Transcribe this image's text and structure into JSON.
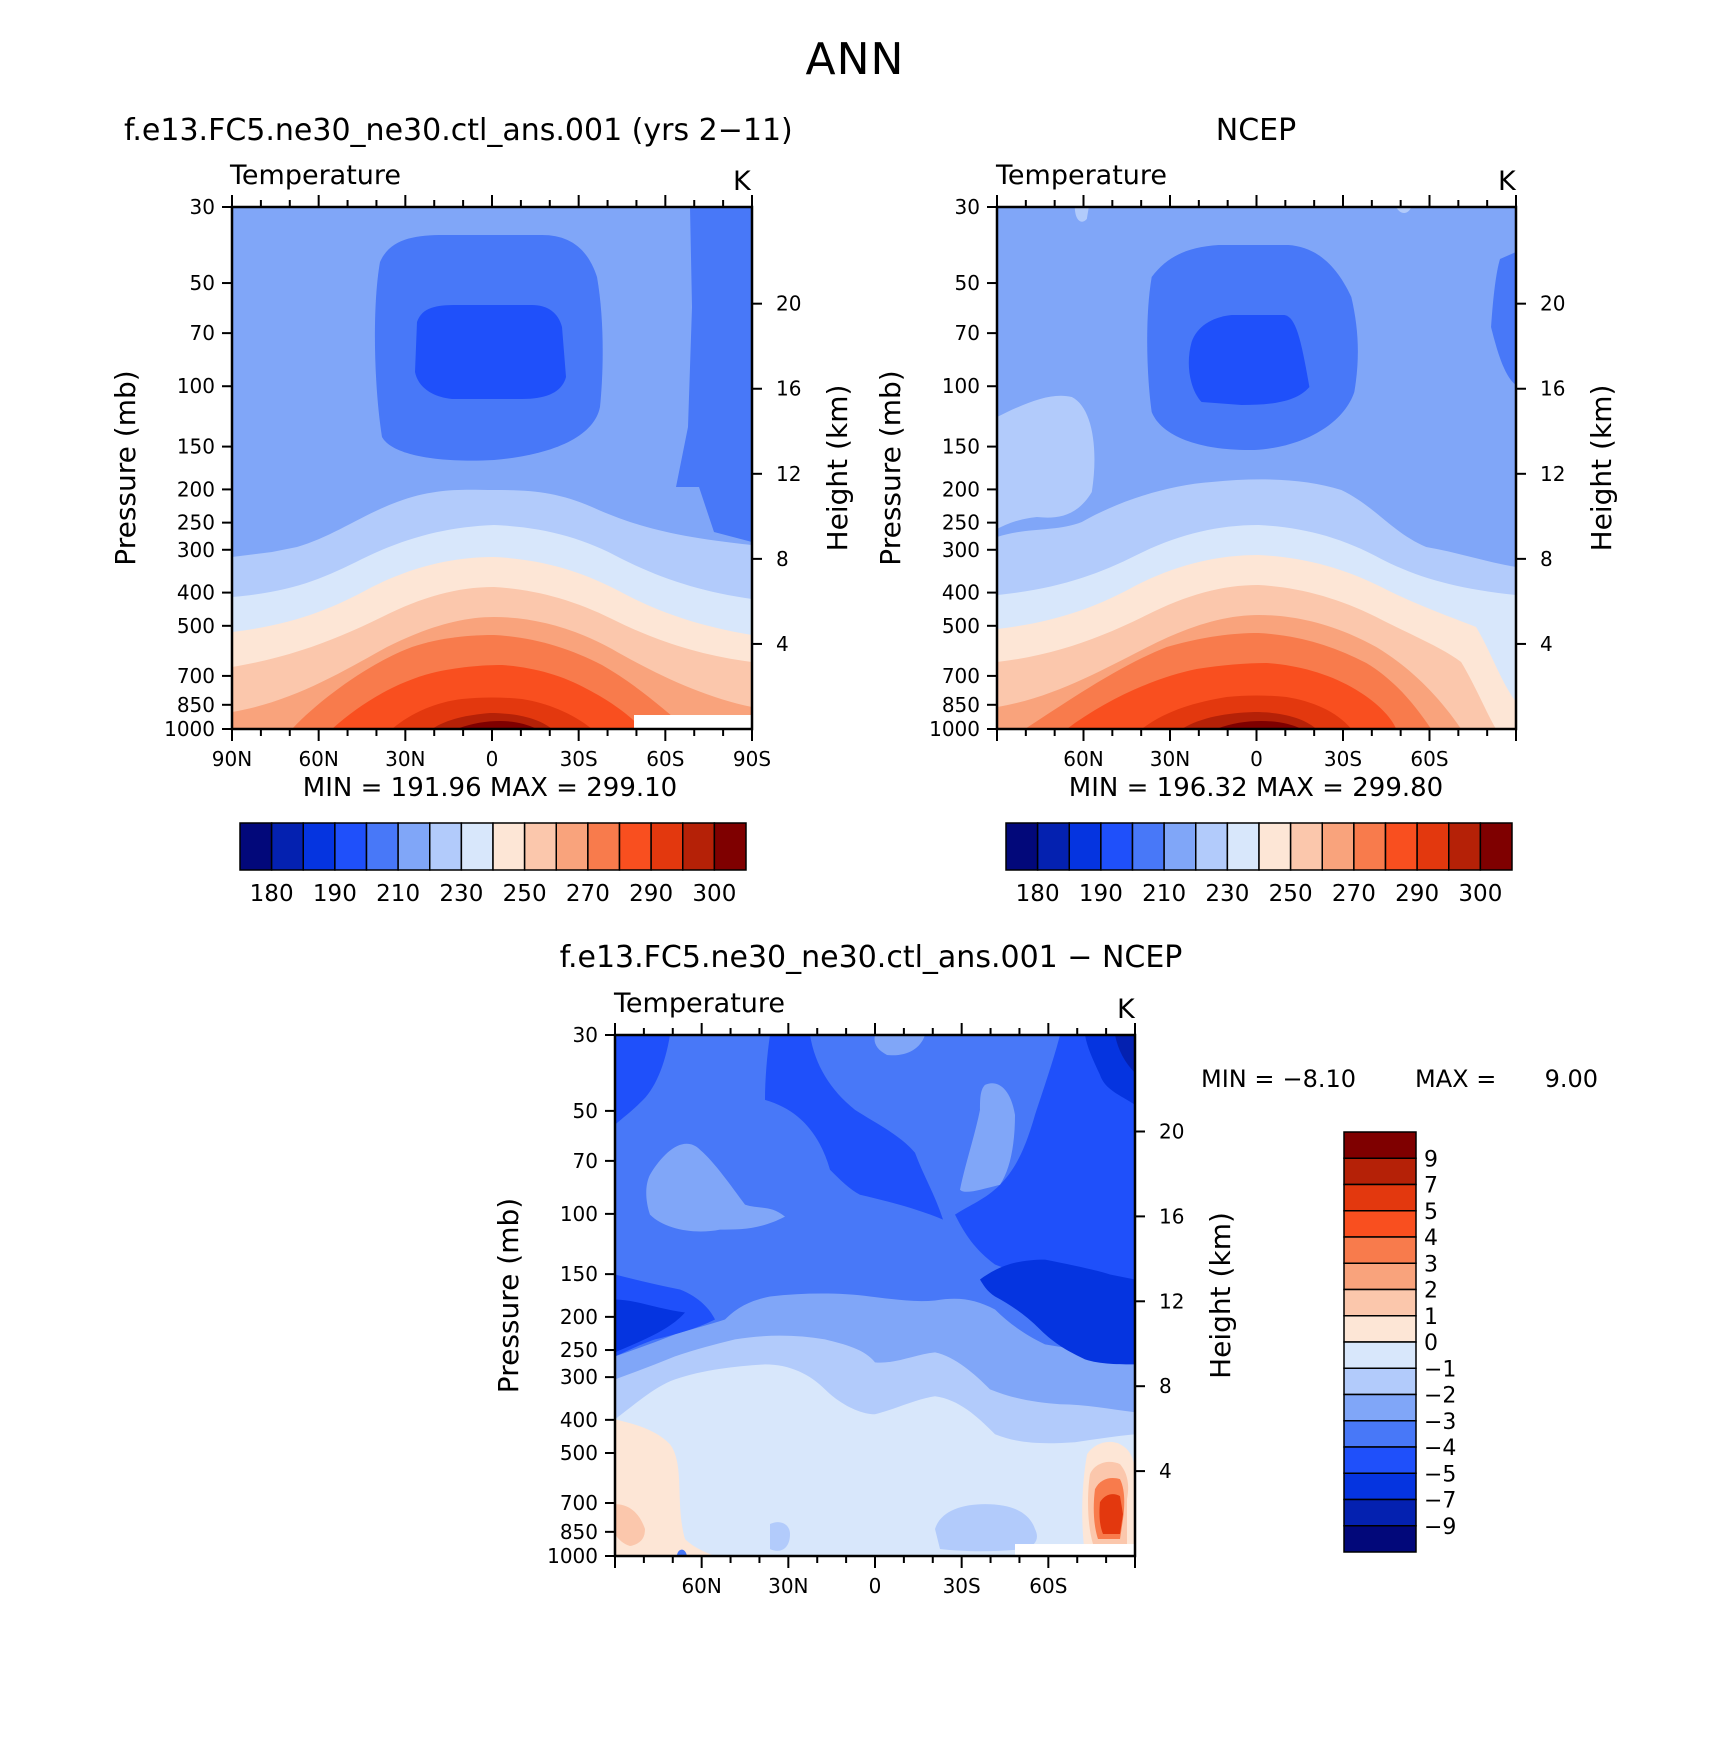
{
  "page": {
    "title": "ANN"
  },
  "panels": {
    "model": {
      "title": "f.e13.FC5.ne30_ne30.ctl_ans.001 (yrs 2−11)",
      "variable": "Temperature",
      "units": "K",
      "stats": "MIN = 191.96   MAX = 299.10"
    },
    "obs": {
      "title": "NCEP",
      "variable": "Temperature",
      "units": "K",
      "stats": "MIN = 196.32   MAX = 299.80"
    },
    "diff": {
      "title": "f.e13.FC5.ne30_ne30.ctl_ans.001 − NCEP",
      "variable": "Temperature",
      "units": "K",
      "min_label": "MIN =",
      "min_value": "−8.10",
      "max_label": "MAX =",
      "max_value": "9.00"
    }
  },
  "chart_data": [
    {
      "type": "heatmap",
      "title": "f.e13.FC5.ne30_ne30.ctl_ans.001 (yrs 2−11)",
      "variable": "Temperature",
      "units": "K",
      "xlabel": "",
      "ylabel": "Pressure (mb)",
      "ylabel_right": "Height (km)",
      "x_ticks": [
        "90N",
        "60N",
        "30N",
        "0",
        "30S",
        "60S",
        "90S"
      ],
      "x_tick_values": [
        90,
        60,
        30,
        0,
        -30,
        -60,
        -90
      ],
      "y_ticks": [
        30,
        50,
        70,
        100,
        150,
        200,
        250,
        300,
        400,
        500,
        700,
        850,
        1000
      ],
      "y_right_ticks": [
        20,
        16,
        12,
        8,
        4
      ],
      "xlim": [
        90,
        -90
      ],
      "ylim": [
        1000,
        30
      ],
      "y_scale": "log",
      "min": 191.96,
      "max": 299.1,
      "contour_levels": [
        180,
        190,
        200,
        210,
        220,
        230,
        240,
        250,
        260,
        270,
        280,
        290,
        295,
        300
      ],
      "colorbar_labels": [
        180,
        190,
        210,
        230,
        250,
        270,
        290,
        300
      ],
      "colorbar_orientation": "horizontal"
    },
    {
      "type": "heatmap",
      "title": "NCEP",
      "variable": "Temperature",
      "units": "K",
      "xlabel": "",
      "ylabel": "Pressure (mb)",
      "ylabel_right": "Height (km)",
      "x_ticks": [
        "60N",
        "30N",
        "0",
        "30S",
        "60S"
      ],
      "x_tick_values": [
        60,
        30,
        0,
        -30,
        -60
      ],
      "y_ticks": [
        30,
        50,
        70,
        100,
        150,
        200,
        250,
        300,
        400,
        500,
        700,
        850,
        1000
      ],
      "y_right_ticks": [
        20,
        16,
        12,
        8,
        4
      ],
      "xlim": [
        90,
        -90
      ],
      "ylim": [
        1000,
        30
      ],
      "y_scale": "log",
      "min": 196.32,
      "max": 299.8,
      "contour_levels": [
        180,
        190,
        200,
        210,
        220,
        230,
        240,
        250,
        260,
        270,
        280,
        290,
        295,
        300
      ],
      "colorbar_labels": [
        180,
        190,
        210,
        230,
        250,
        270,
        290,
        300
      ],
      "colorbar_orientation": "horizontal"
    },
    {
      "type": "heatmap",
      "title": "f.e13.FC5.ne30_ne30.ctl_ans.001 − NCEP",
      "variable": "Temperature",
      "units": "K",
      "xlabel": "",
      "ylabel": "Pressure (mb)",
      "ylabel_right": "Height (km)",
      "x_ticks": [
        "60N",
        "30N",
        "0",
        "30S",
        "60S"
      ],
      "x_tick_values": [
        60,
        30,
        0,
        -30,
        -60
      ],
      "y_ticks": [
        30,
        50,
        70,
        100,
        150,
        200,
        250,
        300,
        400,
        500,
        700,
        850,
        1000
      ],
      "y_right_ticks": [
        20,
        16,
        12,
        8,
        4
      ],
      "xlim": [
        90,
        -90
      ],
      "ylim": [
        1000,
        30
      ],
      "y_scale": "log",
      "min": -8.1,
      "max": 9.0,
      "contour_levels": [
        -9,
        -7,
        -5,
        -4,
        -3,
        -2,
        -1,
        0,
        1,
        2,
        3,
        4,
        5,
        7,
        9
      ],
      "colorbar_labels": [
        "9",
        "7",
        "5",
        "4",
        "3",
        "2",
        "1",
        "0",
        "−1",
        "−2",
        "−3",
        "−4",
        "−5",
        "−7",
        "−9"
      ],
      "colorbar_orientation": "vertical"
    }
  ],
  "colors": {
    "abs_palette": [
      "#02087a",
      "#0421b0",
      "#0534e0",
      "#1f50fa",
      "#4878f8",
      "#80a6f8",
      "#b2cbfb",
      "#d8e7fb",
      "#fde6d6",
      "#fbc7ac",
      "#f9a37c",
      "#f87b4c",
      "#f94f1f",
      "#e3380e",
      "#b52107",
      "#7f0000"
    ],
    "diff_palette_top_down": [
      "#7f0000",
      "#b52107",
      "#e3380e",
      "#f94f1f",
      "#f87b4c",
      "#f9a37c",
      "#fbc7ac",
      "#fde6d6",
      "#d8e7fb",
      "#b2cbfb",
      "#80a6f8",
      "#4878f8",
      "#1f50fa",
      "#0534e0",
      "#0421b0",
      "#02087a"
    ]
  }
}
